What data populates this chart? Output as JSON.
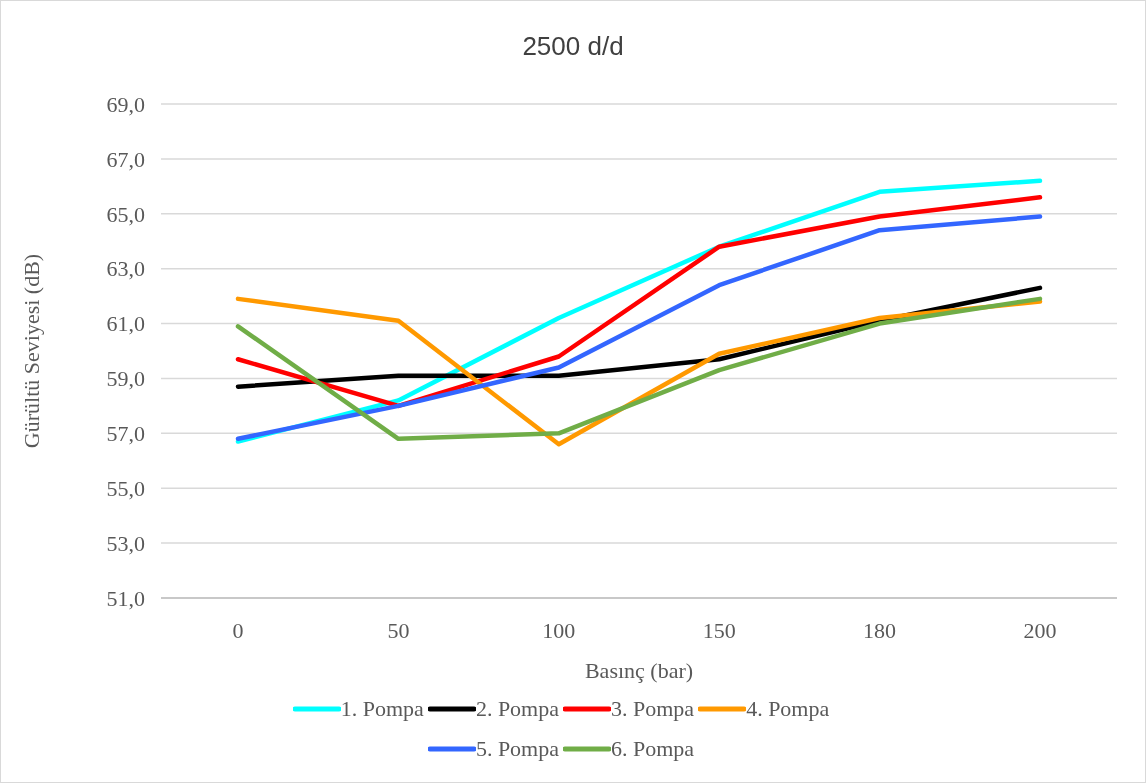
{
  "chart_data": {
    "type": "line",
    "title": "2500 d/d",
    "xlabel": "Basınç (bar)",
    "ylabel": "Gürültü Seviyesi (dB)",
    "categories": [
      "0",
      "50",
      "100",
      "150",
      "180",
      "200"
    ],
    "series": [
      {
        "name": "1. Pompa",
        "color": "#00ffff",
        "values": [
          56.7,
          58.2,
          61.2,
          63.8,
          65.8,
          66.2
        ]
      },
      {
        "name": "2. Pompa",
        "color": "#000000",
        "values": [
          58.7,
          59.1,
          59.1,
          59.7,
          61.1,
          62.3
        ]
      },
      {
        "name": "3. Pompa",
        "color": "#ff0000",
        "values": [
          59.7,
          58.0,
          59.8,
          63.8,
          64.9,
          65.6
        ]
      },
      {
        "name": "4. Pompa",
        "color": "#ff9900",
        "values": [
          61.9,
          61.1,
          56.6,
          59.9,
          61.2,
          61.8
        ]
      },
      {
        "name": "5. Pompa",
        "color": "#3366ff",
        "values": [
          56.8,
          58.0,
          59.4,
          62.4,
          64.4,
          64.9
        ]
      },
      {
        "name": "6. Pompa",
        "color": "#70ad47",
        "values": [
          60.9,
          56.8,
          57.0,
          59.3,
          61.0,
          61.9
        ]
      }
    ],
    "ylim": [
      51,
      69
    ],
    "yticks": [
      {
        "value": 51,
        "label": "51,0"
      },
      {
        "value": 53,
        "label": "53,0"
      },
      {
        "value": 55,
        "label": "55,0"
      },
      {
        "value": 57,
        "label": "57,0"
      },
      {
        "value": 59,
        "label": "59,0"
      },
      {
        "value": 61,
        "label": "61,0"
      },
      {
        "value": 63,
        "label": "63,0"
      },
      {
        "value": 65,
        "label": "65,0"
      },
      {
        "value": 67,
        "label": "67,0"
      },
      {
        "value": 69,
        "label": "69,0"
      }
    ],
    "grid": "y",
    "legend": "bottom"
  }
}
